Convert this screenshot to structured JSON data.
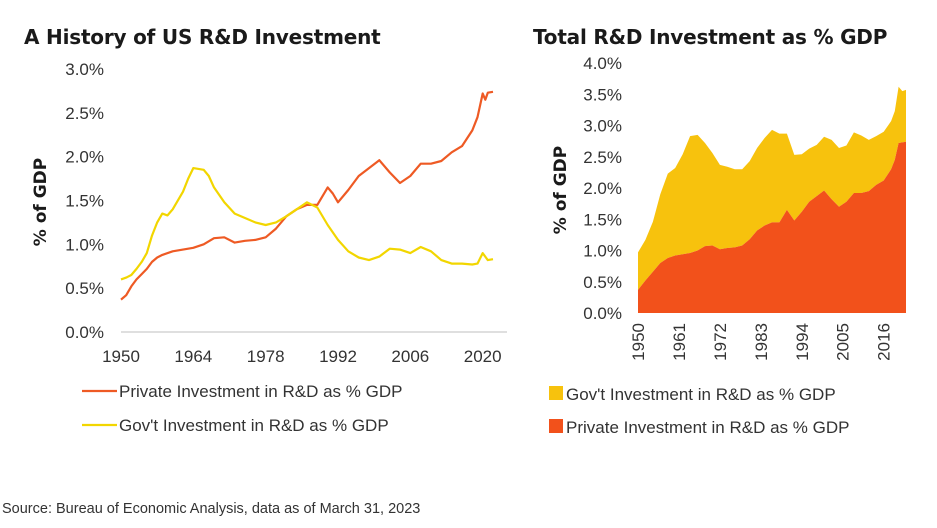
{
  "source": "Source: Bureau of Economic Analysis, data as of March 31, 2023",
  "colors": {
    "private": "#ee5a24",
    "gov": "#f2d600",
    "private_area": "#f2511b",
    "gov_area": "#f7c20d",
    "axis": "#cccccc"
  },
  "chart_data": [
    {
      "type": "line",
      "title": "A History of US R&D Investment",
      "xlabel": "",
      "ylabel": "% of GDP",
      "xlim": [
        1950,
        2022
      ],
      "ylim": [
        0,
        3.0
      ],
      "x_ticks": [
        "1950",
        "1964",
        "1978",
        "1992",
        "2006",
        "2020"
      ],
      "y_ticks": [
        "0.0%",
        "0.5%",
        "1.0%",
        "1.5%",
        "2.0%",
        "2.5%",
        "3.0%"
      ],
      "grid": false,
      "legend": "bottom",
      "series": [
        {
          "name": "Private Investment in R&D as % GDP",
          "x": [
            1950,
            1951,
            1952,
            1953,
            1954,
            1955,
            1956,
            1957,
            1958,
            1960,
            1962,
            1964,
            1966,
            1968,
            1970,
            1972,
            1974,
            1976,
            1978,
            1980,
            1982,
            1984,
            1986,
            1988,
            1990,
            1991,
            1992,
            1994,
            1996,
            1998,
            2000,
            2002,
            2004,
            2006,
            2008,
            2010,
            2012,
            2014,
            2016,
            2018,
            2019,
            2020,
            2020.5,
            2021,
            2022
          ],
          "y": [
            0.37,
            0.42,
            0.52,
            0.6,
            0.66,
            0.72,
            0.8,
            0.85,
            0.88,
            0.92,
            0.94,
            0.96,
            1.0,
            1.07,
            1.08,
            1.02,
            1.04,
            1.05,
            1.08,
            1.18,
            1.32,
            1.4,
            1.45,
            1.45,
            1.65,
            1.58,
            1.48,
            1.62,
            1.78,
            1.87,
            1.96,
            1.82,
            1.7,
            1.78,
            1.92,
            1.92,
            1.95,
            2.05,
            2.12,
            2.3,
            2.45,
            2.72,
            2.65,
            2.73,
            2.74
          ]
        },
        {
          "name": "Gov't Investment in R&D as % GDP",
          "x": [
            1950,
            1951,
            1952,
            1953,
            1954,
            1955,
            1956,
            1957,
            1958,
            1959,
            1960,
            1962,
            1963,
            1964,
            1965,
            1966,
            1967,
            1968,
            1970,
            1972,
            1974,
            1976,
            1978,
            1980,
            1982,
            1984,
            1986,
            1988,
            1990,
            1992,
            1994,
            1996,
            1998,
            2000,
            2002,
            2004,
            2006,
            2008,
            2010,
            2012,
            2014,
            2016,
            2018,
            2019,
            2020,
            2021,
            2022
          ],
          "y": [
            0.6,
            0.62,
            0.65,
            0.72,
            0.8,
            0.9,
            1.1,
            1.25,
            1.35,
            1.33,
            1.4,
            1.6,
            1.75,
            1.87,
            1.86,
            1.85,
            1.78,
            1.65,
            1.48,
            1.35,
            1.3,
            1.25,
            1.22,
            1.25,
            1.32,
            1.4,
            1.48,
            1.42,
            1.22,
            1.05,
            0.92,
            0.85,
            0.82,
            0.86,
            0.95,
            0.94,
            0.9,
            0.97,
            0.92,
            0.82,
            0.78,
            0.78,
            0.77,
            0.78,
            0.9,
            0.82,
            0.83
          ]
        }
      ]
    },
    {
      "type": "area",
      "stacked": true,
      "title": "Total R&D Investment as % GDP",
      "xlabel": "",
      "ylabel": "% of GDP",
      "xlim": [
        1950,
        2022
      ],
      "ylim": [
        0,
        4.0
      ],
      "x_ticks": [
        "1950",
        "1961",
        "1972",
        "1983",
        "1994",
        "2005",
        "2016"
      ],
      "y_ticks": [
        "0.0%",
        "0.5%",
        "1.0%",
        "1.5%",
        "2.0%",
        "2.5%",
        "3.0%",
        "3.5%",
        "4.0%"
      ],
      "grid": false,
      "legend": "bottom",
      "x": [
        1950,
        1952,
        1954,
        1956,
        1958,
        1960,
        1962,
        1964,
        1966,
        1968,
        1970,
        1972,
        1974,
        1976,
        1978,
        1980,
        1982,
        1984,
        1986,
        1988,
        1990,
        1992,
        1994,
        1996,
        1998,
        2000,
        2002,
        2004,
        2006,
        2008,
        2010,
        2012,
        2014,
        2016,
        2018,
        2019,
        2020,
        2021,
        2022
      ],
      "series": [
        {
          "name": "Private Investment in R&D as % GDP",
          "values": [
            0.37,
            0.52,
            0.66,
            0.8,
            0.88,
            0.92,
            0.94,
            0.96,
            1.0,
            1.07,
            1.08,
            1.02,
            1.04,
            1.05,
            1.08,
            1.18,
            1.32,
            1.4,
            1.45,
            1.45,
            1.65,
            1.48,
            1.62,
            1.78,
            1.87,
            1.96,
            1.82,
            1.7,
            1.78,
            1.92,
            1.92,
            1.95,
            2.05,
            2.12,
            2.3,
            2.45,
            2.72,
            2.73,
            2.74
          ]
        },
        {
          "name": "Gov't Investment in R&D as % GDP",
          "total": [
            0.97,
            1.17,
            1.46,
            1.9,
            2.23,
            2.32,
            2.54,
            2.83,
            2.85,
            2.72,
            2.56,
            2.37,
            2.34,
            2.3,
            2.3,
            2.43,
            2.64,
            2.8,
            2.93,
            2.87,
            2.87,
            2.53,
            2.54,
            2.63,
            2.69,
            2.82,
            2.77,
            2.64,
            2.68,
            2.89,
            2.84,
            2.77,
            2.83,
            2.9,
            3.07,
            3.23,
            3.62,
            3.55,
            3.57
          ]
        }
      ]
    }
  ]
}
